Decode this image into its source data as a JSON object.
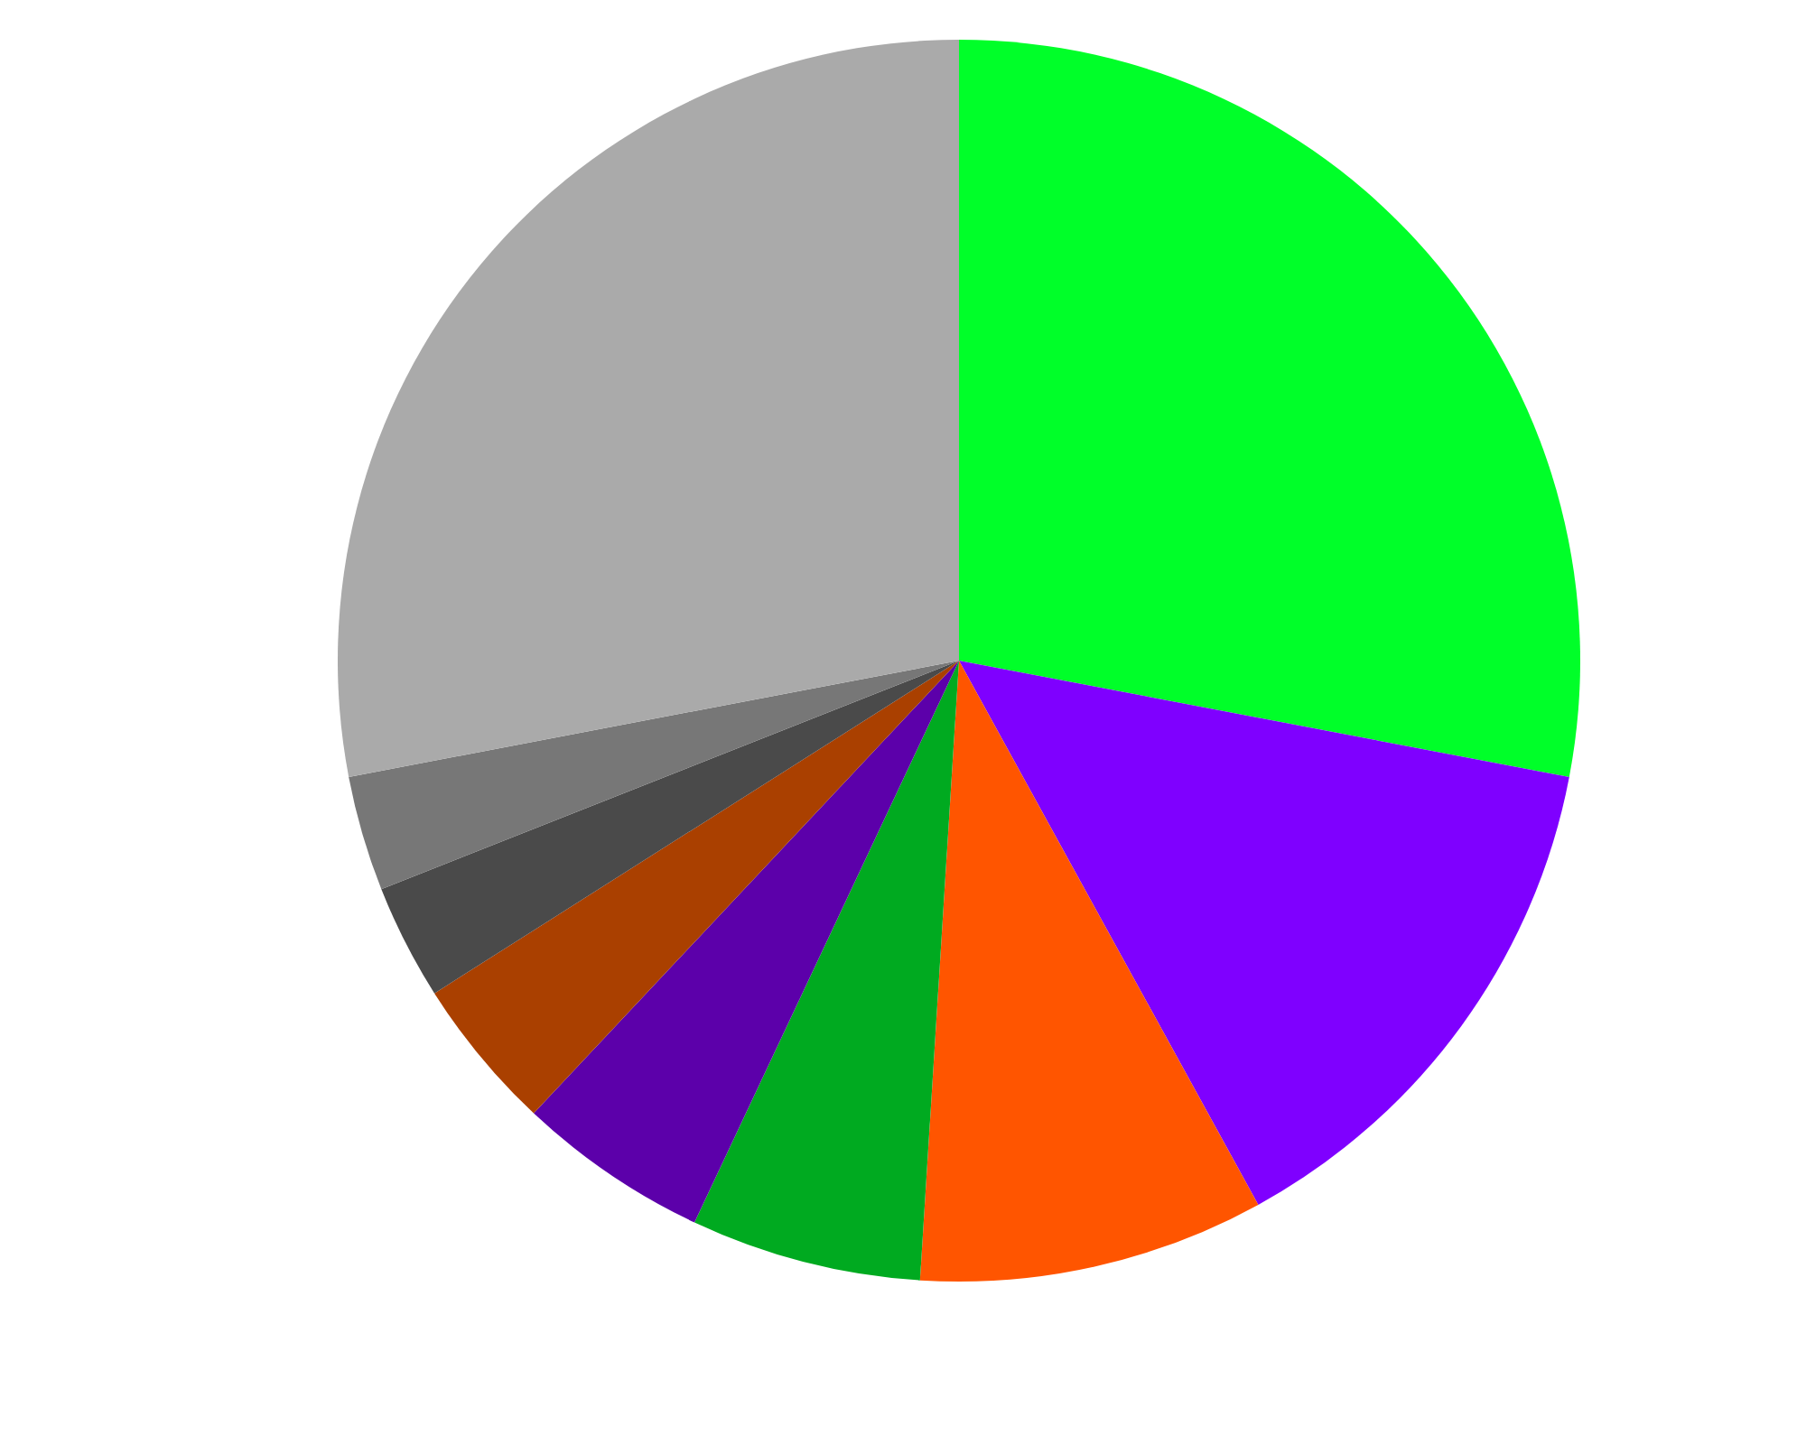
{
  "chart_data": {
    "type": "pie",
    "categories": [
      null,
      null,
      null,
      null,
      null,
      null,
      null,
      null,
      null
    ],
    "values": [
      28,
      14,
      9,
      6,
      5,
      4,
      3,
      3,
      28
    ],
    "colors": [
      "#00ff29",
      "#7f00ff",
      "#ff5500",
      "#00aa20",
      "#5c00aa",
      "#aa4000",
      "#4a4a4a",
      "#777777",
      "#aaaaaa"
    ]
  }
}
